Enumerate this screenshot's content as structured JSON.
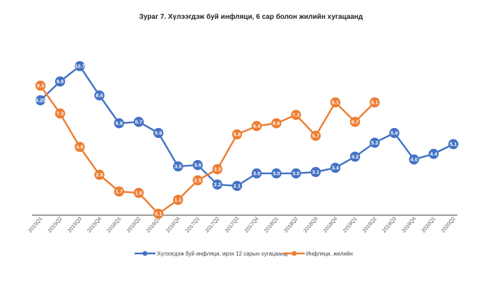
{
  "chart_data": {
    "type": "line",
    "title": "Зураг 7. Хүлээгдэж буй инфляци, 6 сар болон жилийн хугацаанд",
    "categories": [
      "2015Q1",
      "2015Q2",
      "2015Q3",
      "2015Q4",
      "2016Q1",
      "2016Q2",
      "2016Q3",
      "2016Q4",
      "2017Q1",
      "2017Q2",
      "2017Q3",
      "2017Q4",
      "2018Q1",
      "2018Q2",
      "2018Q3",
      "2018Q4",
      "2019Q1",
      "2019Q2",
      "2019Q3",
      "2019Q4",
      "2020Q1",
      "2020Q2"
    ],
    "series": [
      {
        "name": "Хүлээгдэж буй инфляци, ирэх 12 сарын хугацаанд",
        "color": "#4472C4",
        "values": [
          8.25,
          9.6,
          10.7,
          8.6,
          6.6,
          6.7,
          5.9,
          3.5,
          3.6,
          2.2,
          2.1,
          3.0,
          3.0,
          3.0,
          3.1,
          3.4,
          4.2,
          5.2,
          5.9,
          4.0,
          4.4,
          5.1
        ],
        "labels": [
          "8.25",
          "9.6",
          "10.7",
          "8.6",
          "6.6",
          "6.7",
          "5.9",
          "3.5",
          "3.6",
          "2.2",
          "2.1",
          "3.0",
          "3.0",
          "3.0",
          "3.1",
          "3.4",
          "4.2",
          "5.2",
          "5.9",
          "4.0",
          "4.4",
          "5.1"
        ]
      },
      {
        "name": "Инфляци, жилийн",
        "color": "#ED7D31",
        "values": [
          9.3,
          7.3,
          4.9,
          2.9,
          1.7,
          1.6,
          0.1,
          1.1,
          2.5,
          3.3,
          5.8,
          6.4,
          6.6,
          7.2,
          5.7,
          8.1,
          6.7,
          8.1,
          null,
          null,
          null,
          null
        ],
        "labels": [
          "9.3",
          "7.3",
          "4.9",
          "2.9",
          "1.7",
          "1.6",
          "0.1",
          "1.1",
          "2.5",
          "3.3",
          "5.8",
          "6.4",
          "6.6",
          "7.2",
          "5.7",
          "8.1",
          "6.7",
          "8.1",
          null,
          null,
          null,
          null
        ]
      }
    ],
    "ylim": [
      0,
      12
    ],
    "xlabel": "",
    "ylabel": "",
    "grid": false,
    "legend": "bottom"
  }
}
